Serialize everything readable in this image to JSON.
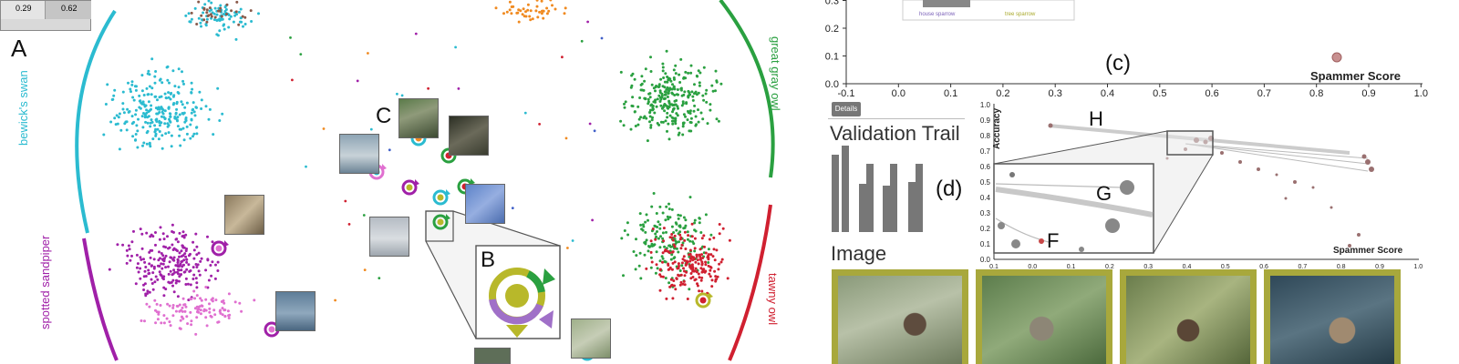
{
  "panel_a": {
    "values": [
      "0.29",
      "0.62"
    ],
    "label": "A"
  },
  "circle_labels": {
    "bewicks_swan": "bewick's swan",
    "spotted_sandpiper": "spotted sandpiper",
    "great_gray_owl": "great gray owl",
    "tawny_owl": "tawny owl"
  },
  "markers": {
    "b": "B",
    "c": "C"
  },
  "panel_c": {
    "label": "(c)",
    "xlabel": "Spammer Score",
    "x_ticks": [
      "-0.1",
      "0.0",
      "0.1",
      "0.2",
      "0.3",
      "0.4",
      "0.5",
      "0.6",
      "0.7",
      "0.8",
      "0.9",
      "1.0"
    ],
    "y_ticks": [
      "0.0",
      "0.1",
      "0.2",
      "0.3"
    ],
    "inset_labels": [
      "house sparrow",
      "tree sparrow"
    ]
  },
  "panel_d": {
    "details_tab": "Details",
    "title": "Validation Trail",
    "label": "(d)",
    "h_label": "H",
    "g_label": "G",
    "f_label": "F",
    "ylabel": "Accuracy",
    "xlabel": "Spammer Score",
    "x_ticks": [
      "0.1",
      "0.0",
      "0.1",
      "0.2",
      "0.3",
      "0.4",
      "0.5",
      "0.6",
      "0.7",
      "0.8",
      "0.9",
      "1.0"
    ],
    "y_ticks": [
      "0.0",
      "0.1",
      "0.2",
      "0.3",
      "0.4",
      "0.5",
      "0.6",
      "0.7",
      "0.8",
      "0.9",
      "1.0"
    ]
  },
  "image_panel": {
    "title": "Image"
  },
  "colors": {
    "cyan": "#2bbbd0",
    "purple": "#a020a8",
    "pink": "#e070d0",
    "green": "#2aa040",
    "red": "#d02030",
    "olive": "#b8b82a",
    "frame": "#a8a83c",
    "orange": "#f08a20"
  }
}
